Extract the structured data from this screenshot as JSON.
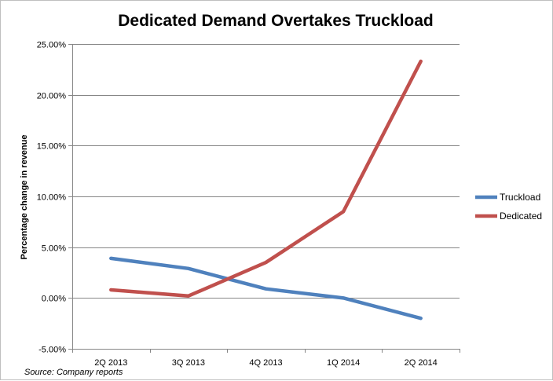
{
  "chart_data": {
    "type": "line",
    "title": "Dedicated Demand Overtakes Truckload",
    "ylabel": "Percentage change  in revenue",
    "xlabel": "",
    "categories": [
      "2Q 2013",
      "3Q 2013",
      "4Q 2013",
      "1Q 2014",
      "2Q 2014"
    ],
    "ylim": [
      -5,
      25
    ],
    "y_ticks": [
      25,
      20,
      15,
      10,
      5,
      0,
      -5
    ],
    "y_tick_labels": [
      "25.00%",
      "20.00%",
      "15.00%",
      "10.00%",
      "5.00%",
      "0.00%",
      "-5.00%"
    ],
    "grid": true,
    "legend_position": "right",
    "series": [
      {
        "name": "Truckload",
        "color": "#4f81bd",
        "values": [
          3.9,
          2.9,
          0.9,
          0.0,
          -2.0
        ]
      },
      {
        "name": "Dedicated",
        "color": "#c0504d",
        "values": [
          0.8,
          0.2,
          3.5,
          8.5,
          23.3
        ]
      }
    ],
    "source": "Source:  Company reports"
  }
}
